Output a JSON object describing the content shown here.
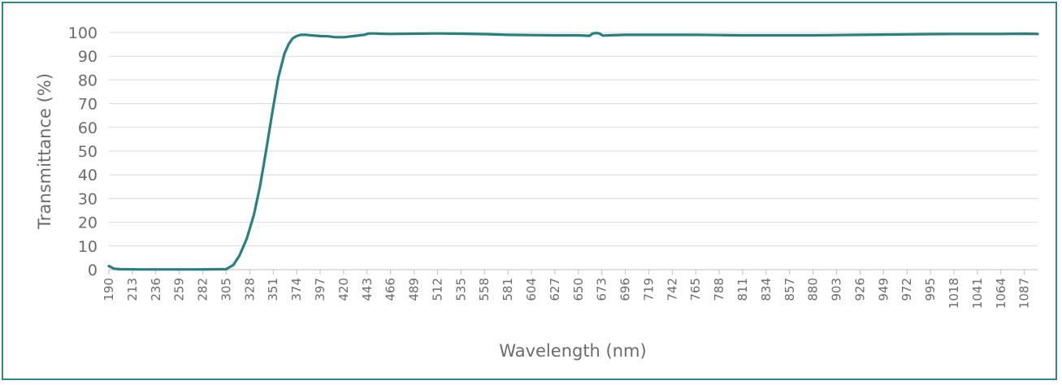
{
  "chart_data": {
    "type": "line",
    "xlabel": "Wavelength (nm)",
    "ylabel": "Transmittance (%)",
    "ylim": [
      0,
      100
    ],
    "xlim": [
      190,
      1100
    ],
    "y_ticks": [
      0,
      10,
      20,
      30,
      40,
      50,
      60,
      70,
      80,
      90,
      100
    ],
    "x_ticks": [
      190,
      213,
      236,
      259,
      282,
      305,
      328,
      351,
      374,
      397,
      420,
      443,
      466,
      489,
      512,
      535,
      558,
      581,
      604,
      627,
      650,
      673,
      696,
      719,
      742,
      765,
      788,
      811,
      834,
      857,
      880,
      903,
      926,
      949,
      972,
      995,
      1018,
      1041,
      1064,
      1087
    ],
    "grid": true,
    "legend": "none",
    "color": "#2a7f80",
    "series": [
      {
        "x": [
          190,
          195,
          200,
          220,
          250,
          280,
          305,
          312,
          318,
          325,
          332,
          338,
          344,
          350,
          356,
          362,
          366,
          370,
          374,
          378,
          383,
          388,
          397,
          405,
          412,
          420,
          430,
          440,
          445,
          450,
          455,
          466,
          489,
          512,
          535,
          558,
          581,
          604,
          627,
          650,
          661,
          664,
          668,
          671,
          674,
          680,
          696,
          719,
          742,
          765,
          788,
          811,
          834,
          857,
          880,
          903,
          926,
          949,
          972,
          995,
          1018,
          1041,
          1064,
          1087,
          1100
        ],
        "y": [
          1.5,
          0.4,
          0.2,
          0.1,
          0.1,
          0.1,
          0.2,
          2,
          6,
          13,
          23,
          35,
          50,
          66,
          81,
          91,
          95,
          97.5,
          98.5,
          99,
          99,
          98.8,
          98.5,
          98.4,
          98,
          98,
          98.5,
          99,
          99.6,
          99.6,
          99.5,
          99.4,
          99.5,
          99.6,
          99.5,
          99.3,
          99,
          98.9,
          98.8,
          98.8,
          98.6,
          99.6,
          99.8,
          99.5,
          98.7,
          98.8,
          99,
          99,
          99,
          99,
          98.9,
          98.8,
          98.8,
          98.8,
          98.8,
          98.9,
          99,
          99.1,
          99.2,
          99.3,
          99.4,
          99.4,
          99.4,
          99.5,
          99.4
        ]
      }
    ]
  }
}
